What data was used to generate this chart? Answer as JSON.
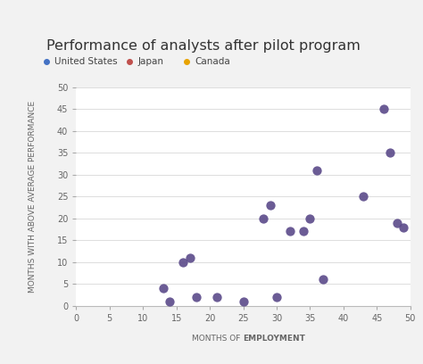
{
  "title": "Performance of analysts after pilot program",
  "xlabel_normal": "MONTHS OF ",
  "xlabel_bold": "EMPLOYMENT",
  "ylabel": "MONTHS WITH ABOVE AVERAGE PERFORMANCE",
  "legend_items": [
    {
      "label": "United States",
      "color": "#4472C4"
    },
    {
      "label": "Japan",
      "color": "#C0504D"
    },
    {
      "label": "Canada",
      "color": "#E8A300"
    }
  ],
  "scatter_color": "#5B4A8A",
  "scatter_points": [
    [
      13,
      4
    ],
    [
      14,
      1
    ],
    [
      16,
      10
    ],
    [
      17,
      11
    ],
    [
      18,
      2
    ],
    [
      21,
      2
    ],
    [
      25,
      1
    ],
    [
      28,
      20
    ],
    [
      29,
      23
    ],
    [
      30,
      2
    ],
    [
      32,
      17
    ],
    [
      34,
      17
    ],
    [
      35,
      20
    ],
    [
      36,
      31
    ],
    [
      37,
      6
    ],
    [
      43,
      25
    ],
    [
      46,
      45
    ],
    [
      47,
      35
    ],
    [
      48,
      19
    ],
    [
      49,
      18
    ]
  ],
  "xlim": [
    0,
    50
  ],
  "ylim": [
    0,
    50
  ],
  "xticks": [
    0,
    5,
    10,
    15,
    20,
    25,
    30,
    35,
    40,
    45,
    50
  ],
  "yticks": [
    0,
    5,
    10,
    15,
    20,
    25,
    30,
    35,
    40,
    45,
    50
  ],
  "bg_color": "#f2f2f2",
  "plot_bg_color": "#ffffff",
  "title_fontsize": 11.5,
  "axis_label_fontsize": 6.5,
  "tick_fontsize": 7,
  "legend_fontsize": 7.5,
  "scatter_size": 55
}
